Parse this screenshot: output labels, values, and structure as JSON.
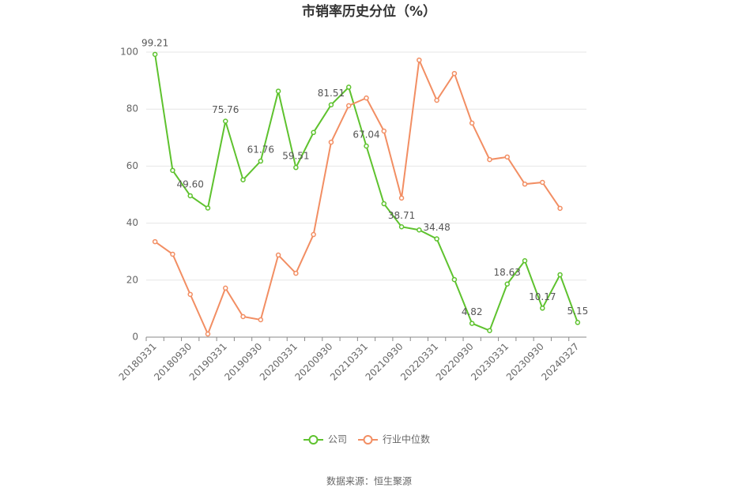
{
  "chart_data": {
    "type": "line",
    "title": "市销率历史分位（%）",
    "source": "数据来源：恒生聚源",
    "categories": [
      "20180331",
      null,
      "20180930",
      null,
      "20190331",
      null,
      "20190930",
      null,
      "20200331",
      null,
      "20200930",
      null,
      "20210331",
      null,
      "20210930",
      null,
      "20220331",
      null,
      "20220930",
      null,
      "20230331",
      null,
      "20230930",
      null,
      "20240327"
    ],
    "ylim": [
      0,
      100
    ],
    "yticks": [
      0,
      20,
      40,
      60,
      80,
      100
    ],
    "grid": true,
    "series": [
      {
        "name": "公司",
        "color": "#5ec22e",
        "values": [
          99.21,
          58.5,
          49.6,
          45.3,
          75.76,
          55.2,
          61.76,
          86.3,
          59.51,
          71.8,
          81.51,
          87.7,
          67.04,
          46.8,
          38.71,
          37.6,
          34.48,
          20.2,
          4.82,
          2.3,
          18.63,
          26.8,
          10.17,
          21.9,
          5.15
        ],
        "value_labels": [
          "99.21",
          null,
          "49.60",
          null,
          "75.76",
          null,
          "61.76",
          null,
          "59.51",
          null,
          "81.51",
          null,
          "67.04",
          null,
          "38.71",
          null,
          "34.48",
          null,
          "4.82",
          null,
          "18.63",
          null,
          "10.17",
          null,
          "5.15"
        ]
      },
      {
        "name": "行业中位数",
        "color": "#f28e63",
        "values": [
          33.5,
          29.1,
          15.0,
          1.1,
          17.2,
          7.2,
          6.1,
          28.8,
          22.4,
          36.0,
          68.4,
          81.2,
          83.9,
          72.3,
          48.8,
          97.2,
          83.1,
          92.5,
          75.1,
          62.3,
          63.2,
          53.7,
          54.3,
          45.2,
          null
        ]
      }
    ]
  }
}
